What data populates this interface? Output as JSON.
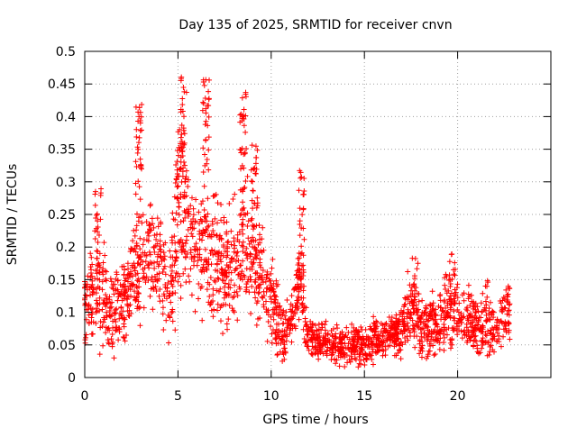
{
  "chart_data": {
    "type": "scatter",
    "title": "Day 135 of 2025, SRMTID for receiver cnvn",
    "xlabel": "GPS time / hours",
    "ylabel": "SRMTID / TECUs",
    "xlim": [
      0,
      25
    ],
    "ylim": [
      0,
      0.5
    ],
    "xticks": [
      0,
      5,
      10,
      15,
      20
    ],
    "xtick_labels": [
      "0",
      "5",
      "10",
      "15",
      "20"
    ],
    "yticks": [
      0,
      0.05,
      0.1,
      0.15,
      0.2,
      0.25,
      0.3,
      0.35,
      0.4,
      0.45,
      0.5
    ],
    "ytick_labels": [
      "0",
      "0.05",
      "0.1",
      "0.15",
      "0.2",
      "0.25",
      "0.3",
      "0.35",
      "0.4",
      "0.45",
      "0.5"
    ],
    "grid": true,
    "marker": "+",
    "series": [
      {
        "name": "SRMTID",
        "color": "#ff0000",
        "note": "dense per-satellite samples, ~4-minute cadence; envelope read from figure",
        "x_range": [
          0,
          22.8
        ],
        "envelope_x": [
          0,
          0.5,
          1,
          1.5,
          2,
          2.5,
          3,
          3.5,
          4,
          4.5,
          5,
          5.5,
          6,
          6.5,
          7,
          7.5,
          8,
          8.5,
          9,
          9.5,
          10,
          10.5,
          11,
          11.5,
          12,
          12.5,
          13,
          13.5,
          14,
          14.5,
          15,
          15.5,
          16,
          16.5,
          17,
          17.5,
          18,
          18.5,
          19,
          19.5,
          20,
          20.5,
          21,
          21.5,
          22,
          22.5,
          22.8
        ],
        "envelope_mid": [
          0.11,
          0.12,
          0.13,
          0.1,
          0.11,
          0.14,
          0.17,
          0.19,
          0.18,
          0.12,
          0.21,
          0.24,
          0.2,
          0.18,
          0.2,
          0.16,
          0.17,
          0.2,
          0.19,
          0.15,
          0.13,
          0.07,
          0.08,
          0.14,
          0.06,
          0.06,
          0.05,
          0.05,
          0.05,
          0.05,
          0.05,
          0.06,
          0.06,
          0.07,
          0.07,
          0.11,
          0.08,
          0.08,
          0.08,
          0.11,
          0.09,
          0.09,
          0.08,
          0.07,
          0.08,
          0.09,
          0.1
        ],
        "envelope_spread": [
          0.04,
          0.05,
          0.06,
          0.04,
          0.04,
          0.05,
          0.06,
          0.06,
          0.06,
          0.05,
          0.07,
          0.07,
          0.06,
          0.06,
          0.07,
          0.06,
          0.06,
          0.06,
          0.06,
          0.05,
          0.05,
          0.03,
          0.03,
          0.04,
          0.02,
          0.02,
          0.02,
          0.02,
          0.02,
          0.02,
          0.02,
          0.02,
          0.02,
          0.02,
          0.03,
          0.04,
          0.03,
          0.03,
          0.03,
          0.04,
          0.03,
          0.03,
          0.03,
          0.03,
          0.03,
          0.03,
          0.03
        ],
        "spikes": [
          {
            "x": 0.7,
            "min": 0.14,
            "max": 0.29
          },
          {
            "x": 2.9,
            "min": 0.24,
            "max": 0.43
          },
          {
            "x": 5.0,
            "min": 0.22,
            "max": 0.38
          },
          {
            "x": 5.3,
            "min": 0.26,
            "max": 0.47
          },
          {
            "x": 6.5,
            "min": 0.28,
            "max": 0.46
          },
          {
            "x": 8.5,
            "min": 0.25,
            "max": 0.44
          },
          {
            "x": 9.1,
            "min": 0.2,
            "max": 0.36
          },
          {
            "x": 11.6,
            "min": 0.12,
            "max": 0.32
          },
          {
            "x": 17.7,
            "min": 0.1,
            "max": 0.19
          },
          {
            "x": 19.7,
            "min": 0.1,
            "max": 0.19
          },
          {
            "x": 21.5,
            "min": 0.08,
            "max": 0.16
          }
        ]
      }
    ]
  }
}
